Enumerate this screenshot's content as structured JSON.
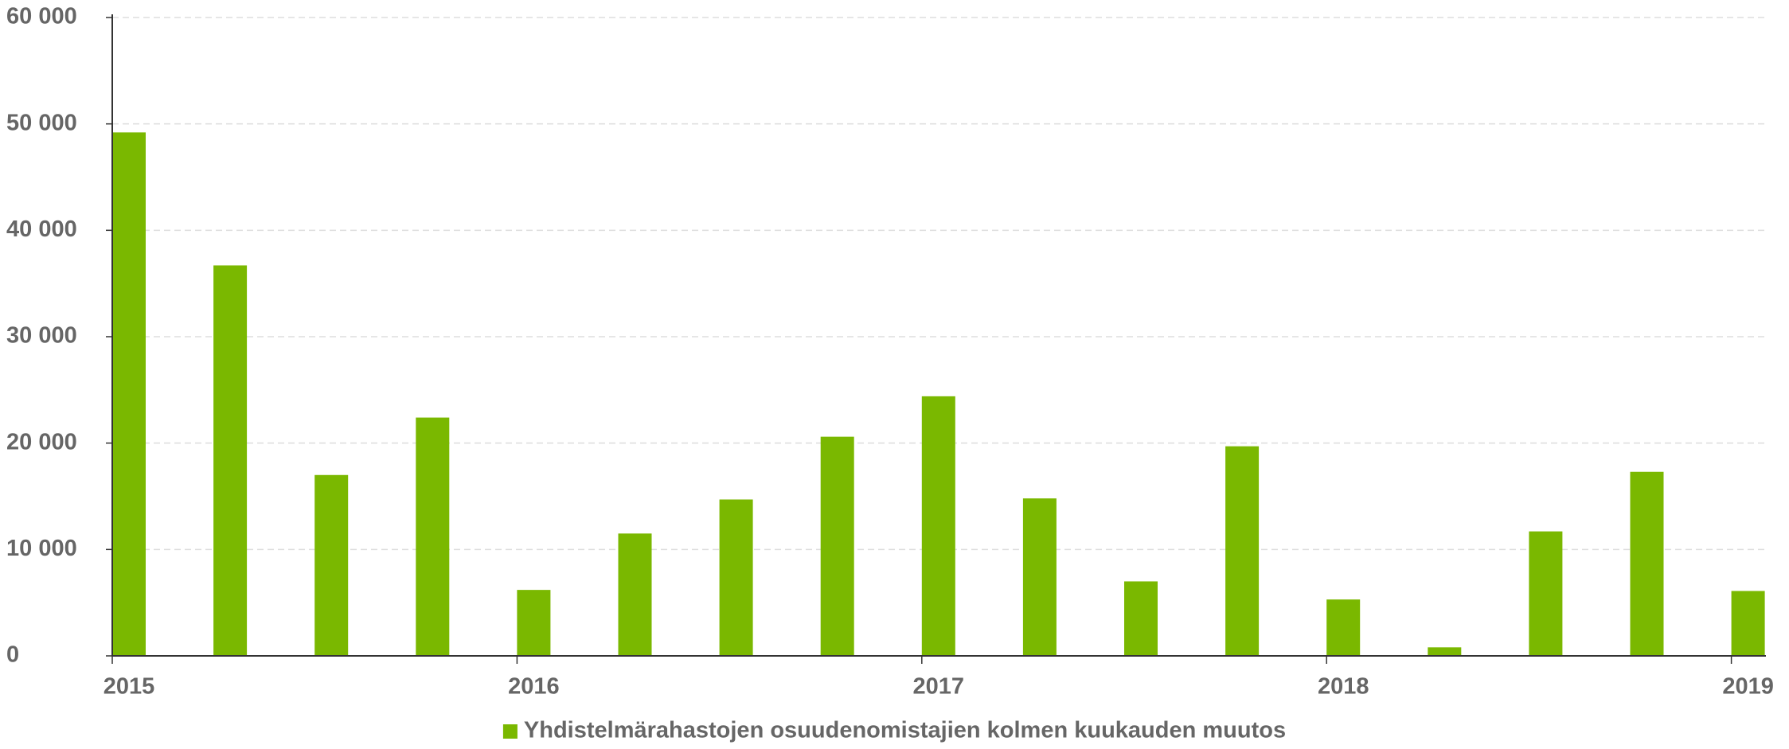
{
  "chart_data": {
    "type": "bar",
    "categories": [
      "2015",
      null,
      null,
      null,
      "2016",
      null,
      null,
      null,
      "2017",
      null,
      null,
      null,
      "2018",
      null,
      null,
      null,
      "2019"
    ],
    "series": [
      {
        "name": "Yhdistelmärahastojen osuudenomistajien kolmen kuukauden muutos",
        "color": "#7ab800",
        "values": [
          49200,
          36700,
          17000,
          22400,
          6200,
          11500,
          14700,
          20600,
          24400,
          14800,
          7000,
          19700,
          5300,
          800,
          11700,
          17300,
          6100
        ]
      }
    ],
    "ylim": [
      0,
      60000
    ],
    "yticks": [
      {
        "value": 0,
        "label": "0"
      },
      {
        "value": 10000,
        "label": "10 000"
      },
      {
        "value": 20000,
        "label": "20 000"
      },
      {
        "value": 30000,
        "label": "30 000"
      },
      {
        "value": 40000,
        "label": "40 000"
      },
      {
        "value": 50000,
        "label": "50 000"
      },
      {
        "value": 60000,
        "label": "60 000"
      }
    ],
    "grid": true,
    "legend": "bottom"
  }
}
